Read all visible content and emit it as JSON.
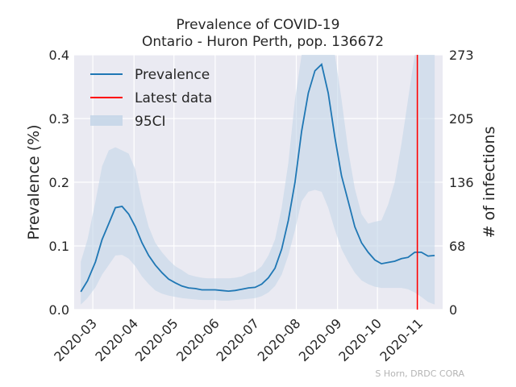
{
  "chart_data": {
    "type": "line",
    "title": "Prevalence of COVID-19",
    "subtitle": "Ontario - Huron Perth, pop. 136672",
    "ylabel": "Prevalence (%)",
    "ylabel_right": "# of infections",
    "xlabel": "",
    "ylim": [
      0,
      0.4
    ],
    "yticks": [
      "0.0",
      "0.1",
      "0.2",
      "0.3",
      "0.4"
    ],
    "yticks_right": [
      "0",
      "68",
      "136",
      "205",
      "273"
    ],
    "xticks": [
      "2020-03",
      "2020-04",
      "2020-05",
      "2020-06",
      "2020-07",
      "2020-08",
      "2020-09",
      "2020-10",
      "2020-11"
    ],
    "xticks_dates": [
      "2020-03-01",
      "2020-04-01",
      "2020-05-01",
      "2020-06-01",
      "2020-07-01",
      "2020-08-01",
      "2020-09-01",
      "2020-10-01",
      "2020-11-01"
    ],
    "grid": true,
    "legend_position": "top-left",
    "legend": {
      "prevalence": "Prevalence",
      "latest": "Latest data",
      "ci": "95CI"
    },
    "latest_date": "2020-10-31",
    "colors": {
      "prevalence": "#1f77b4",
      "latest": "#ff0000",
      "ci": "#c3d5e8",
      "background": "#eaeaf2"
    },
    "series": [
      {
        "name": "Prevalence",
        "x": [
          "2020-02-21",
          "2020-02-26",
          "2020-03-03",
          "2020-03-08",
          "2020-03-13",
          "2020-03-18",
          "2020-03-23",
          "2020-03-28",
          "2020-04-02",
          "2020-04-07",
          "2020-04-12",
          "2020-04-17",
          "2020-04-22",
          "2020-04-27",
          "2020-05-02",
          "2020-05-07",
          "2020-05-12",
          "2020-05-17",
          "2020-05-22",
          "2020-05-27",
          "2020-06-01",
          "2020-06-06",
          "2020-06-11",
          "2020-06-16",
          "2020-06-21",
          "2020-06-26",
          "2020-07-01",
          "2020-07-06",
          "2020-07-11",
          "2020-07-16",
          "2020-07-21",
          "2020-07-26",
          "2020-07-31",
          "2020-08-05",
          "2020-08-10",
          "2020-08-15",
          "2020-08-20",
          "2020-08-25",
          "2020-08-30",
          "2020-09-04",
          "2020-09-09",
          "2020-09-14",
          "2020-09-19",
          "2020-09-24",
          "2020-09-29",
          "2020-10-04",
          "2020-10-09",
          "2020-10-14",
          "2020-10-19",
          "2020-10-24",
          "2020-10-29",
          "2020-11-03",
          "2020-11-08",
          "2020-11-13"
        ],
        "values": [
          0.028,
          0.045,
          0.075,
          0.11,
          0.135,
          0.16,
          0.162,
          0.15,
          0.13,
          0.105,
          0.085,
          0.07,
          0.058,
          0.048,
          0.042,
          0.037,
          0.034,
          0.033,
          0.031,
          0.031,
          0.031,
          0.03,
          0.029,
          0.03,
          0.032,
          0.034,
          0.035,
          0.04,
          0.05,
          0.065,
          0.095,
          0.14,
          0.2,
          0.28,
          0.34,
          0.375,
          0.385,
          0.34,
          0.27,
          0.21,
          0.17,
          0.13,
          0.105,
          0.09,
          0.078,
          0.072,
          0.074,
          0.076,
          0.08,
          0.082,
          0.09,
          0.09,
          0.084,
          0.085
        ]
      }
    ],
    "ci": {
      "name": "95CI",
      "lower": [
        0.008,
        0.018,
        0.035,
        0.055,
        0.07,
        0.085,
        0.086,
        0.08,
        0.068,
        0.052,
        0.04,
        0.03,
        0.025,
        0.022,
        0.02,
        0.018,
        0.017,
        0.016,
        0.015,
        0.015,
        0.015,
        0.014,
        0.014,
        0.015,
        0.016,
        0.017,
        0.018,
        0.021,
        0.027,
        0.037,
        0.055,
        0.085,
        0.125,
        0.17,
        0.185,
        0.188,
        0.185,
        0.16,
        0.125,
        0.095,
        0.075,
        0.058,
        0.046,
        0.04,
        0.036,
        0.034,
        0.034,
        0.034,
        0.034,
        0.032,
        0.027,
        0.02,
        0.012,
        0.008
      ],
      "upper": [
        0.075,
        0.11,
        0.17,
        0.225,
        0.25,
        0.255,
        0.25,
        0.245,
        0.22,
        0.17,
        0.13,
        0.105,
        0.09,
        0.078,
        0.068,
        0.062,
        0.055,
        0.052,
        0.05,
        0.049,
        0.049,
        0.049,
        0.049,
        0.05,
        0.052,
        0.057,
        0.06,
        0.068,
        0.085,
        0.11,
        0.16,
        0.23,
        0.33,
        0.4,
        0.4,
        0.4,
        0.4,
        0.4,
        0.4,
        0.33,
        0.25,
        0.19,
        0.15,
        0.135,
        0.138,
        0.14,
        0.165,
        0.2,
        0.26,
        0.33,
        0.4,
        0.4,
        0.4,
        0.4
      ]
    }
  },
  "credit": "S Horn, DRDC CORA"
}
